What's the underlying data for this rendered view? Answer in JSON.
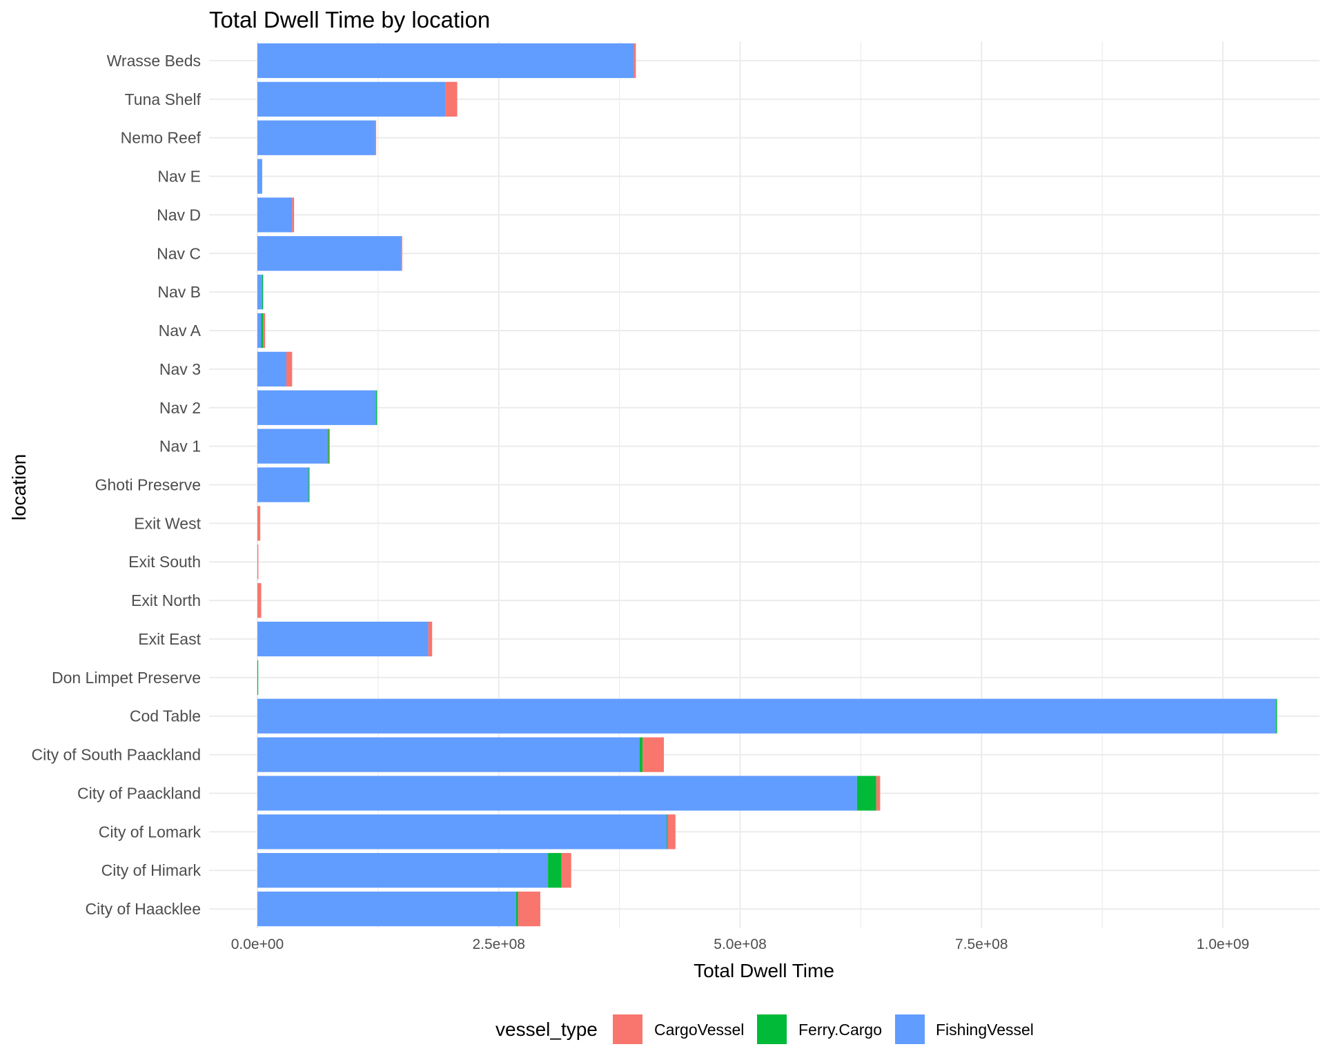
{
  "chart_data": {
    "type": "bar",
    "orientation": "horizontal",
    "stacked": true,
    "title": "Total Dwell Time by location",
    "xlabel": "Total Dwell Time",
    "ylabel": "location",
    "xlim": [
      -50000000,
      1100000000
    ],
    "x_ticks": [
      0,
      250000000,
      500000000,
      750000000,
      1000000000
    ],
    "x_tick_labels": [
      "0.0e+00",
      "2.5e+08",
      "5.0e+08",
      "7.5e+08",
      "1.0e+09"
    ],
    "grid": true,
    "legend": {
      "title": "vessel_type",
      "position": "bottom"
    },
    "categories": [
      "City of Haacklee",
      "City of Himark",
      "City of Lomark",
      "City of Paackland",
      "City of South Paackland",
      "Cod Table",
      "Don Limpet Preserve",
      "Exit East",
      "Exit North",
      "Exit South",
      "Exit West",
      "Ghoti Preserve",
      "Nav 1",
      "Nav 2",
      "Nav 3",
      "Nav A",
      "Nav B",
      "Nav C",
      "Nav D",
      "Nav E",
      "Nemo Reef",
      "Tuna Shelf",
      "Wrasse Beds"
    ],
    "series": [
      {
        "name": "FishingVessel",
        "color": "#619CFF",
        "values": [
          268000000,
          301000000,
          424000000,
          621000000,
          396000000,
          1055000000,
          0,
          177000000,
          0,
          0,
          0,
          53000000,
          73000000,
          123000000,
          30000000,
          4000000,
          5000000,
          149000000,
          36000000,
          5000000,
          122000000,
          195000000,
          390000000
        ]
      },
      {
        "name": "Ferry.Cargo",
        "color": "#00BA38",
        "values": [
          2000000,
          14000000,
          1000000,
          20000000,
          3000000,
          1000000,
          800000,
          0,
          0,
          0,
          0,
          1000000,
          1000000,
          1000000,
          0,
          2000000,
          1000000,
          0,
          0,
          0,
          0,
          0,
          0
        ]
      },
      {
        "name": "CargoVessel",
        "color": "#F8766D",
        "values": [
          23000000,
          10000000,
          8000000,
          4000000,
          22000000,
          0,
          0,
          4000000,
          4000000,
          1000000,
          3000000,
          0,
          1000000,
          0,
          6000000,
          2000000,
          0,
          1000000,
          2000000,
          0,
          1000000,
          12000000,
          2000000
        ]
      }
    ],
    "legend_order": [
      "CargoVessel",
      "Ferry.Cargo",
      "FishingVessel"
    ]
  }
}
